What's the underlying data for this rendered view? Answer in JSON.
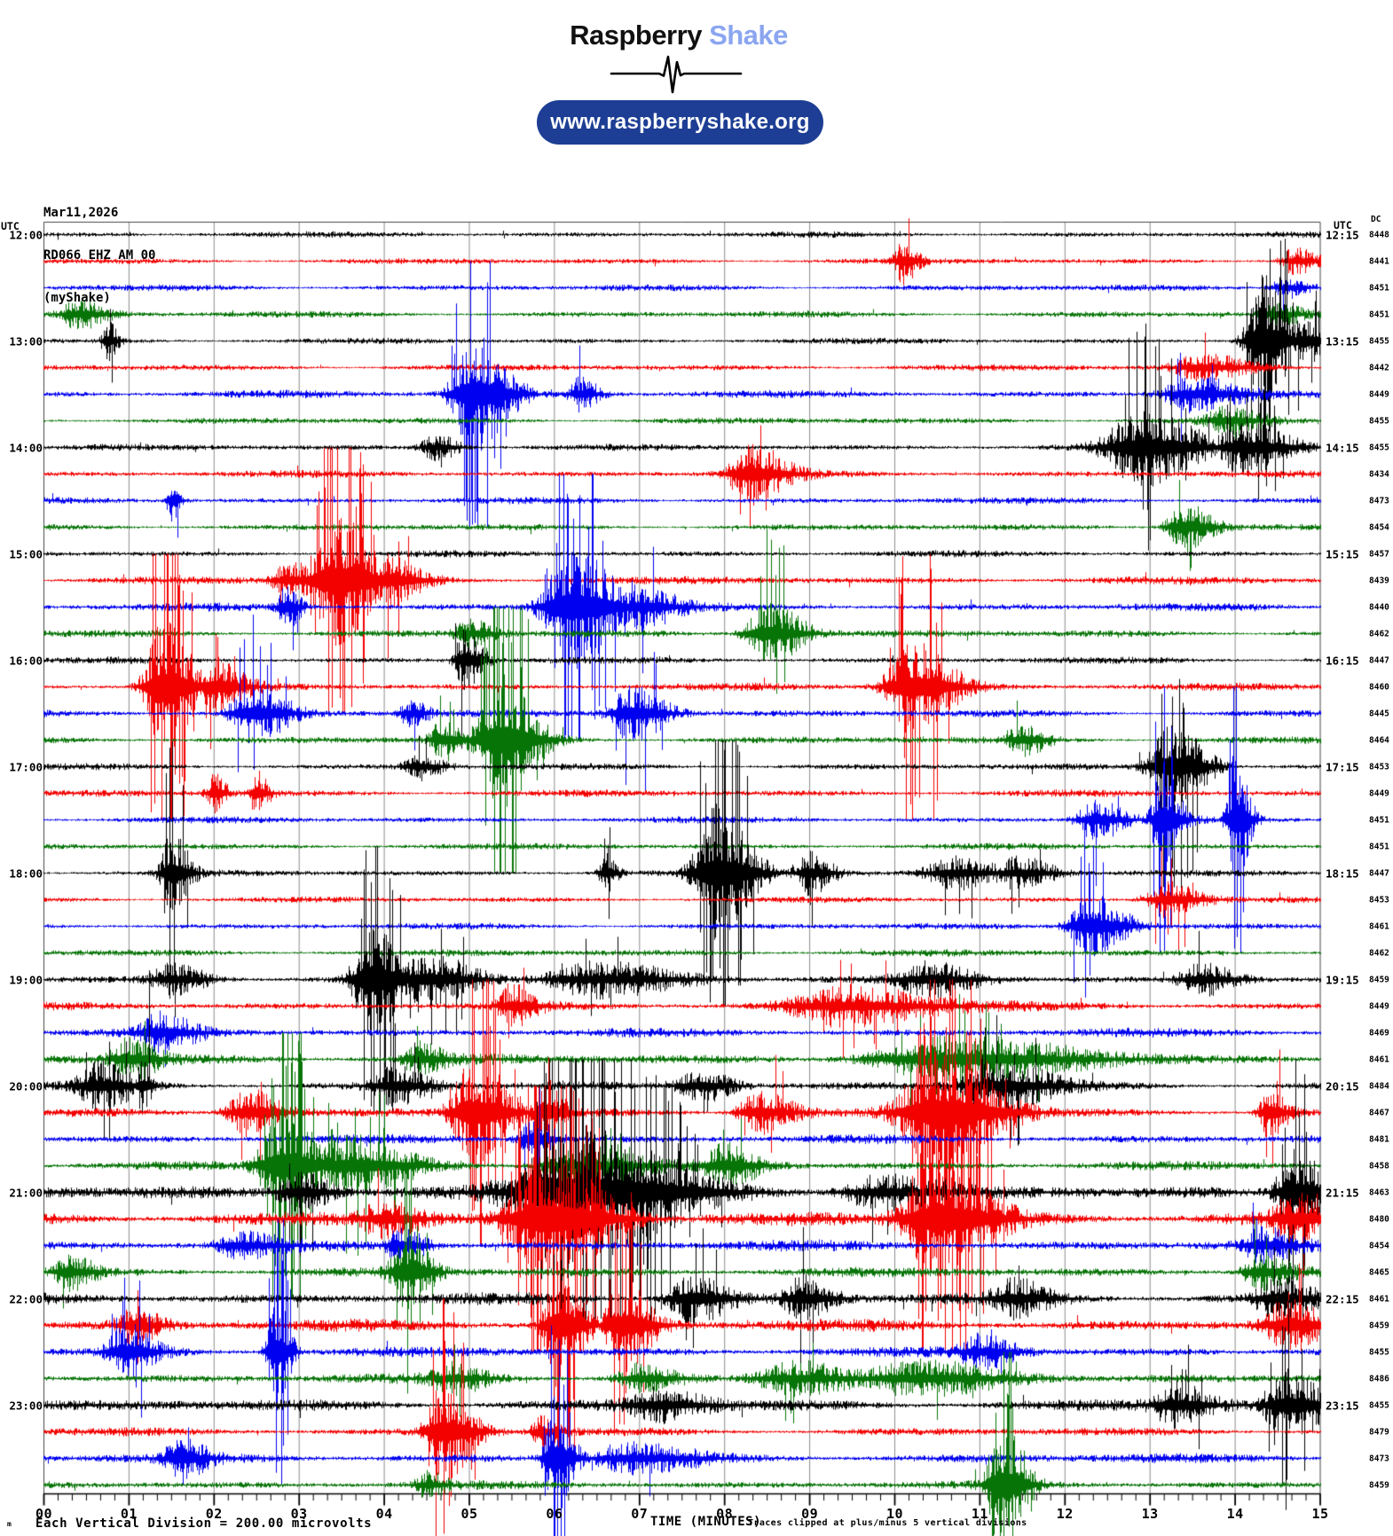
{
  "header": {
    "brand_first": "Raspberry",
    "brand_second": "Shake",
    "url": "www.raspberryshake.org"
  },
  "station": {
    "date": "Mar11,2026",
    "code": "RD066 EHZ AM 00",
    "network": "(myShake)"
  },
  "axis": {
    "utc_left": "UTC",
    "utc_right": "UTC",
    "dc_header": "DC",
    "x_title": "TIME (MINUTES)",
    "x_ticks": [
      "00",
      "01",
      "02",
      "03",
      "04",
      "05",
      "06",
      "07",
      "08",
      "09",
      "10",
      "11",
      "12",
      "13",
      "14",
      "15"
    ],
    "minor_ticks_per_minute": 5
  },
  "footer": {
    "marker": "m",
    "scale_note": "Each Vertical Division =  200.00 microvolts",
    "clip_note": "Traces clipped at plus/minus 5 vertical divisions"
  },
  "chart_data": {
    "type": "line",
    "subtype": "helicorder",
    "title": "RD066 EHZ AM 00 (myShake) helicorder, Mar11,2026 12:00-24:00 UTC",
    "x_range_minutes": [
      0,
      15
    ],
    "minutes_per_line": 15,
    "clip_divisions": 5,
    "microvolts_per_division": 200,
    "palette": {
      "black": "#000000",
      "red": "#f30000",
      "blue": "#0000f0",
      "green": "#077407",
      "grid": "#8c8c8c",
      "frame": "#444444",
      "axis": "#000000"
    },
    "rows": [
      {
        "t_left": "12:00",
        "t_right": "12:15",
        "dc": 8448,
        "color": "black",
        "noise": 0.3,
        "events": []
      },
      {
        "t_left": "",
        "t_right": "",
        "dc": 8441,
        "color": "red",
        "noise": 0.3,
        "events": [
          {
            "m": 10.1,
            "w": 0.12,
            "a": 1.7
          },
          {
            "m": 14.7,
            "w": 0.2,
            "a": 1.0
          }
        ]
      },
      {
        "t_left": "",
        "t_right": "",
        "dc": 8451,
        "color": "blue",
        "noise": 0.32,
        "events": [
          {
            "m": 14.6,
            "w": 0.2,
            "a": 0.9
          }
        ]
      },
      {
        "t_left": "",
        "t_right": "",
        "dc": 8451,
        "color": "green",
        "noise": 0.32,
        "events": [
          {
            "m": 0.4,
            "w": 0.25,
            "a": 1.1
          },
          {
            "m": 14.5,
            "w": 0.2,
            "a": 0.9
          }
        ]
      },
      {
        "t_left": "13:00",
        "t_right": "13:15",
        "dc": 8455,
        "color": "black",
        "noise": 0.3,
        "events": [
          {
            "m": 0.75,
            "w": 0.08,
            "a": 1.6
          },
          {
            "m": 14.32,
            "w": 0.22,
            "a": 5
          },
          {
            "m": 14.8,
            "w": 0.2,
            "a": 1.8
          }
        ]
      },
      {
        "t_left": "",
        "t_right": "",
        "dc": 8442,
        "color": "red",
        "noise": 0.33,
        "events": [
          {
            "m": 13.6,
            "w": 0.4,
            "a": 1.0
          }
        ]
      },
      {
        "t_left": "",
        "t_right": "",
        "dc": 8449,
        "color": "blue",
        "noise": 0.38,
        "events": [
          {
            "m": 5.05,
            "w": 0.3,
            "a": 4.5
          },
          {
            "m": 6.3,
            "w": 0.15,
            "a": 1.3
          },
          {
            "m": 13.5,
            "w": 0.4,
            "a": 1.3
          }
        ]
      },
      {
        "t_left": "",
        "t_right": "",
        "dc": 8455,
        "color": "green",
        "noise": 0.33,
        "events": [
          {
            "m": 13.9,
            "w": 0.3,
            "a": 1.0
          }
        ]
      },
      {
        "t_left": "14:00",
        "t_right": "14:15",
        "dc": 8455,
        "color": "black",
        "noise": 0.33,
        "events": [
          {
            "m": 4.6,
            "w": 0.2,
            "a": 1.0
          },
          {
            "m": 12.9,
            "w": 0.5,
            "a": 2.8
          },
          {
            "m": 14.1,
            "w": 0.4,
            "a": 2.0
          }
        ]
      },
      {
        "t_left": "",
        "t_right": "",
        "dc": 8434,
        "color": "red",
        "noise": 0.36,
        "events": [
          {
            "m": 8.3,
            "w": 0.3,
            "a": 2.2
          }
        ]
      },
      {
        "t_left": "",
        "t_right": "",
        "dc": 8473,
        "color": "blue",
        "noise": 0.33,
        "events": [
          {
            "m": 1.5,
            "w": 0.08,
            "a": 1.5
          }
        ]
      },
      {
        "t_left": "",
        "t_right": "",
        "dc": 8454,
        "color": "green",
        "noise": 0.33,
        "events": [
          {
            "m": 13.4,
            "w": 0.25,
            "a": 1.8
          }
        ]
      },
      {
        "t_left": "15:00",
        "t_right": "15:15",
        "dc": 8457,
        "color": "black",
        "noise": 0.33,
        "events": []
      },
      {
        "t_left": "",
        "t_right": "",
        "dc": 8439,
        "color": "red",
        "noise": 0.4,
        "events": [
          {
            "m": 2.9,
            "w": 0.25,
            "a": 1.3
          },
          {
            "m": 3.42,
            "w": 0.35,
            "a": 5
          },
          {
            "m": 4.0,
            "w": 0.3,
            "a": 2.0
          }
        ]
      },
      {
        "t_left": "",
        "t_right": "",
        "dc": 8440,
        "color": "blue",
        "noise": 0.4,
        "events": [
          {
            "m": 2.85,
            "w": 0.12,
            "a": 1.6
          },
          {
            "m": 6.2,
            "w": 0.38,
            "a": 4.6
          },
          {
            "m": 7.0,
            "w": 0.3,
            "a": 1.6
          }
        ]
      },
      {
        "t_left": "",
        "t_right": "",
        "dc": 8462,
        "color": "green",
        "noise": 0.38,
        "events": [
          {
            "m": 5.0,
            "w": 0.2,
            "a": 1.0
          },
          {
            "m": 8.5,
            "w": 0.3,
            "a": 2.4
          }
        ]
      },
      {
        "t_left": "16:00",
        "t_right": "16:15",
        "dc": 8447,
        "color": "black",
        "noise": 0.33,
        "events": [
          {
            "m": 4.95,
            "w": 0.15,
            "a": 2.2
          }
        ]
      },
      {
        "t_left": "",
        "t_right": "",
        "dc": 8460,
        "color": "red",
        "noise": 0.38,
        "events": [
          {
            "m": 1.4,
            "w": 0.25,
            "a": 5
          },
          {
            "m": 2.0,
            "w": 0.25,
            "a": 2.0
          },
          {
            "m": 10.2,
            "w": 0.35,
            "a": 3.6
          }
        ]
      },
      {
        "t_left": "",
        "t_right": "",
        "dc": 8445,
        "color": "blue",
        "noise": 0.38,
        "events": [
          {
            "m": 2.45,
            "w": 0.3,
            "a": 2.2
          },
          {
            "m": 4.3,
            "w": 0.15,
            "a": 1.0
          },
          {
            "m": 6.9,
            "w": 0.3,
            "a": 2.2
          }
        ]
      },
      {
        "t_left": "",
        "t_right": "",
        "dc": 8464,
        "color": "green",
        "noise": 0.38,
        "events": [
          {
            "m": 4.7,
            "w": 0.2,
            "a": 1.5
          },
          {
            "m": 5.35,
            "w": 0.3,
            "a": 5
          },
          {
            "m": 11.5,
            "w": 0.2,
            "a": 1.2
          }
        ]
      },
      {
        "t_left": "17:00",
        "t_right": "17:15",
        "dc": 8453,
        "color": "black",
        "noise": 0.33,
        "events": [
          {
            "m": 4.4,
            "w": 0.2,
            "a": 1.0
          },
          {
            "m": 13.25,
            "w": 0.3,
            "a": 3.2
          }
        ]
      },
      {
        "t_left": "",
        "t_right": "",
        "dc": 8449,
        "color": "red",
        "noise": 0.36,
        "events": [
          {
            "m": 2.0,
            "w": 0.1,
            "a": 1.6
          },
          {
            "m": 2.5,
            "w": 0.1,
            "a": 1.6
          }
        ]
      },
      {
        "t_left": "",
        "t_right": "",
        "dc": 8451,
        "color": "blue",
        "noise": 0.33,
        "events": [
          {
            "m": 12.35,
            "w": 0.25,
            "a": 1.5
          },
          {
            "m": 13.15,
            "w": 0.15,
            "a": 4.2
          },
          {
            "m": 14.0,
            "w": 0.12,
            "a": 5
          }
        ]
      },
      {
        "t_left": "",
        "t_right": "",
        "dc": 8451,
        "color": "green",
        "noise": 0.33,
        "events": []
      },
      {
        "t_left": "18:00",
        "t_right": "18:15",
        "dc": 8447,
        "color": "black",
        "noise": 0.33,
        "events": [
          {
            "m": 1.5,
            "w": 0.15,
            "a": 3.0
          },
          {
            "m": 6.6,
            "w": 0.1,
            "a": 1.5
          },
          {
            "m": 7.9,
            "w": 0.3,
            "a": 5
          },
          {
            "m": 9.0,
            "w": 0.2,
            "a": 1.6
          },
          {
            "m": 10.7,
            "w": 0.4,
            "a": 1.2
          },
          {
            "m": 11.45,
            "w": 0.3,
            "a": 1.3
          }
        ]
      },
      {
        "t_left": "",
        "t_right": "",
        "dc": 8453,
        "color": "red",
        "noise": 0.3,
        "events": [
          {
            "m": 13.2,
            "w": 0.3,
            "a": 1.4
          }
        ]
      },
      {
        "t_left": "",
        "t_right": "",
        "dc": 8461,
        "color": "blue",
        "noise": 0.33,
        "events": [
          {
            "m": 12.3,
            "w": 0.3,
            "a": 2.6
          }
        ]
      },
      {
        "t_left": "",
        "t_right": "",
        "dc": 8462,
        "color": "green",
        "noise": 0.36,
        "events": []
      },
      {
        "t_left": "19:00",
        "t_right": "19:15",
        "dc": 8459,
        "color": "black",
        "noise": 0.42,
        "events": [
          {
            "m": 1.5,
            "w": 0.3,
            "a": 1.1
          },
          {
            "m": 3.85,
            "w": 0.25,
            "a": 4.6
          },
          {
            "m": 4.5,
            "w": 0.4,
            "a": 1.8
          },
          {
            "m": 6.5,
            "w": 0.7,
            "a": 1.3
          },
          {
            "m": 10.4,
            "w": 0.4,
            "a": 1.2
          },
          {
            "m": 13.6,
            "w": 0.3,
            "a": 1.2
          }
        ]
      },
      {
        "t_left": "",
        "t_right": "",
        "dc": 8449,
        "color": "red",
        "noise": 0.42,
        "events": [
          {
            "m": 5.5,
            "w": 0.2,
            "a": 1.4
          },
          {
            "m": 9.4,
            "w": 0.8,
            "a": 1.5
          }
        ]
      },
      {
        "t_left": "",
        "t_right": "",
        "dc": 8469,
        "color": "blue",
        "noise": 0.45,
        "events": [
          {
            "m": 1.35,
            "w": 0.3,
            "a": 1.3
          }
        ]
      },
      {
        "t_left": "",
        "t_right": "",
        "dc": 8461,
        "color": "green",
        "noise": 0.55,
        "events": [
          {
            "m": 1.0,
            "w": 0.25,
            "a": 1.5
          },
          {
            "m": 4.4,
            "w": 0.2,
            "a": 1.2
          },
          {
            "m": 10.7,
            "w": 1.1,
            "a": 1.5
          }
        ]
      },
      {
        "t_left": "20:00",
        "t_right": "20:15",
        "dc": 8484,
        "color": "black",
        "noise": 0.45,
        "events": [
          {
            "m": 0.65,
            "w": 0.3,
            "a": 1.7
          },
          {
            "m": 1.15,
            "w": 0.1,
            "a": 1.8
          },
          {
            "m": 4.1,
            "w": 0.3,
            "a": 1.4
          },
          {
            "m": 7.7,
            "w": 0.3,
            "a": 1.3
          },
          {
            "m": 11.2,
            "w": 0.5,
            "a": 1.6
          }
        ]
      },
      {
        "t_left": "",
        "t_right": "",
        "dc": 8467,
        "color": "red",
        "noise": 0.45,
        "events": [
          {
            "m": 2.4,
            "w": 0.3,
            "a": 1.8
          },
          {
            "m": 5.05,
            "w": 0.3,
            "a": 4.2
          },
          {
            "m": 5.9,
            "w": 0.15,
            "a": 2.4
          },
          {
            "m": 8.4,
            "w": 0.3,
            "a": 1.6
          },
          {
            "m": 10.5,
            "w": 0.5,
            "a": 4.6
          },
          {
            "m": 14.4,
            "w": 0.15,
            "a": 2.0
          }
        ]
      },
      {
        "t_left": "",
        "t_right": "",
        "dc": 8481,
        "color": "blue",
        "noise": 0.45,
        "events": [
          {
            "m": 5.75,
            "w": 0.2,
            "a": 1.6
          }
        ]
      },
      {
        "t_left": "",
        "t_right": "",
        "dc": 8458,
        "color": "green",
        "noise": 0.45,
        "events": [
          {
            "m": 2.8,
            "w": 0.3,
            "a": 4.4
          },
          {
            "m": 3.6,
            "w": 0.5,
            "a": 2.2
          },
          {
            "m": 6.3,
            "w": 0.5,
            "a": 1.5
          },
          {
            "m": 8.0,
            "w": 0.3,
            "a": 1.5
          }
        ]
      },
      {
        "t_left": "21:00",
        "t_right": "21:15",
        "dc": 8463,
        "color": "black",
        "noise": 0.7,
        "events": [
          {
            "m": 3.0,
            "w": 0.3,
            "a": 1.5
          },
          {
            "m": 6.3,
            "w": 0.85,
            "a": 5
          },
          {
            "m": 9.8,
            "w": 0.5,
            "a": 1.2
          },
          {
            "m": 14.7,
            "w": 0.25,
            "a": 3.4
          }
        ]
      },
      {
        "t_left": "",
        "t_right": "",
        "dc": 8480,
        "color": "red",
        "noise": 0.7,
        "events": [
          {
            "m": 4.0,
            "w": 0.3,
            "a": 1.4
          },
          {
            "m": 5.9,
            "w": 0.5,
            "a": 5
          },
          {
            "m": 10.5,
            "w": 0.45,
            "a": 4.6
          },
          {
            "m": 14.7,
            "w": 0.3,
            "a": 1.6
          }
        ]
      },
      {
        "t_left": "",
        "t_right": "",
        "dc": 8454,
        "color": "blue",
        "noise": 0.55,
        "events": [
          {
            "m": 2.3,
            "w": 0.3,
            "a": 1.0
          },
          {
            "m": 4.2,
            "w": 0.2,
            "a": 1.4
          },
          {
            "m": 14.3,
            "w": 0.25,
            "a": 1.2
          }
        ]
      },
      {
        "t_left": "",
        "t_right": "",
        "dc": 8465,
        "color": "green",
        "noise": 0.5,
        "events": [
          {
            "m": 0.3,
            "w": 0.2,
            "a": 1.2
          },
          {
            "m": 4.25,
            "w": 0.2,
            "a": 3.0
          },
          {
            "m": 14.3,
            "w": 0.25,
            "a": 1.4
          }
        ]
      },
      {
        "t_left": "22:00",
        "t_right": "22:15",
        "dc": 8461,
        "color": "black",
        "noise": 0.6,
        "events": [
          {
            "m": 7.6,
            "w": 0.3,
            "a": 2.0
          },
          {
            "m": 8.9,
            "w": 0.25,
            "a": 1.6
          },
          {
            "m": 11.4,
            "w": 0.3,
            "a": 1.2
          },
          {
            "m": 14.5,
            "w": 0.3,
            "a": 1.5
          }
        ]
      },
      {
        "t_left": "",
        "t_right": "",
        "dc": 8459,
        "color": "red",
        "noise": 0.6,
        "events": [
          {
            "m": 1.05,
            "w": 0.25,
            "a": 1.2
          },
          {
            "m": 6.05,
            "w": 0.2,
            "a": 4.6
          },
          {
            "m": 6.8,
            "w": 0.25,
            "a": 3.4
          },
          {
            "m": 14.6,
            "w": 0.3,
            "a": 1.8
          }
        ]
      },
      {
        "t_left": "",
        "t_right": "",
        "dc": 8455,
        "color": "blue",
        "noise": 0.5,
        "events": [
          {
            "m": 0.95,
            "w": 0.25,
            "a": 2.0
          },
          {
            "m": 2.72,
            "w": 0.12,
            "a": 4.6
          },
          {
            "m": 11.0,
            "w": 0.3,
            "a": 1.2
          }
        ]
      },
      {
        "t_left": "",
        "t_right": "",
        "dc": 8486,
        "color": "green",
        "noise": 0.5,
        "events": [
          {
            "m": 4.8,
            "w": 0.3,
            "a": 1.0
          },
          {
            "m": 7.0,
            "w": 0.3,
            "a": 1.0
          },
          {
            "m": 8.8,
            "w": 0.5,
            "a": 1.2
          },
          {
            "m": 10.3,
            "w": 0.8,
            "a": 1.1
          }
        ]
      },
      {
        "t_left": "23:00",
        "t_right": "23:15",
        "dc": 8455,
        "color": "black",
        "noise": 0.6,
        "events": [
          {
            "m": 7.2,
            "w": 0.4,
            "a": 1.2
          },
          {
            "m": 13.3,
            "w": 0.3,
            "a": 1.6
          },
          {
            "m": 14.6,
            "w": 0.3,
            "a": 2.4
          }
        ]
      },
      {
        "t_left": "",
        "t_right": "",
        "dc": 8479,
        "color": "red",
        "noise": 0.42,
        "events": [
          {
            "m": 4.7,
            "w": 0.25,
            "a": 3.6
          },
          {
            "m": 5.85,
            "w": 0.15,
            "a": 1.1
          }
        ]
      },
      {
        "t_left": "",
        "t_right": "",
        "dc": 8473,
        "color": "blue",
        "noise": 0.5,
        "events": [
          {
            "m": 1.6,
            "w": 0.2,
            "a": 1.6
          },
          {
            "m": 6.0,
            "w": 0.15,
            "a": 4.5
          },
          {
            "m": 6.9,
            "w": 0.5,
            "a": 1.0
          }
        ]
      },
      {
        "t_left": "",
        "t_right": "",
        "dc": 8459,
        "color": "green",
        "noise": 0.42,
        "events": [
          {
            "m": 4.5,
            "w": 0.15,
            "a": 0.9
          },
          {
            "m": 11.25,
            "w": 0.2,
            "a": 4.5
          }
        ]
      }
    ]
  }
}
